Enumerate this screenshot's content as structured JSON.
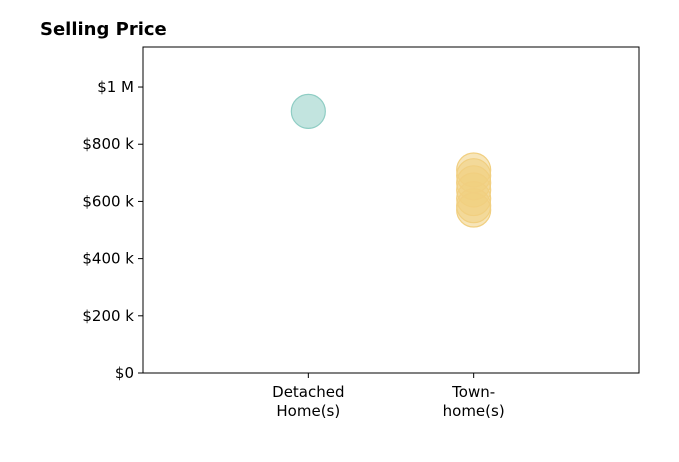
{
  "chart_data": {
    "type": "scatter",
    "title": "Selling Price",
    "xlabel": "",
    "ylabel": "",
    "categories": [
      [
        "Detached",
        "Home(s)"
      ],
      [
        "Town-",
        "home(s)"
      ]
    ],
    "xlim": [
      -1,
      2
    ],
    "ylim": [
      0,
      1140000
    ],
    "yticks": [
      {
        "value": 0,
        "label": "$0"
      },
      {
        "value": 200000,
        "label": "$200 k"
      },
      {
        "value": 400000,
        "label": "$400 k"
      },
      {
        "value": 600000,
        "label": "$600 k"
      },
      {
        "value": 800000,
        "label": "$800 k"
      },
      {
        "value": 1000000,
        "label": "$1 M"
      }
    ],
    "grid": false,
    "legend": "none",
    "series": [
      {
        "category_index": 0,
        "color": "#8fcdc4",
        "values": [
          915000
        ]
      },
      {
        "category_index": 1,
        "color": "#f1cf80",
        "values": [
          710000,
          690000,
          665000,
          640000,
          610000,
          585000,
          570000
        ]
      }
    ]
  }
}
